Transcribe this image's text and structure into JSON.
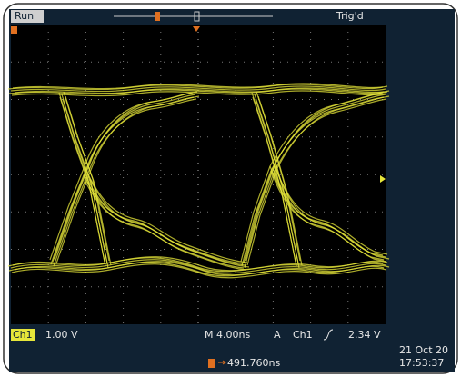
{
  "status": "Run",
  "trigger_status": "Trig'd",
  "channel": "Ch1",
  "scale": "1.00 V",
  "timebase": "M 4.00ns",
  "trigger_mode": "A",
  "trigger_source": "Ch1",
  "trigger_level": "2.34 V",
  "position": "491.760ns",
  "date": "21 Oct 20",
  "time": "17:53:37"
}
